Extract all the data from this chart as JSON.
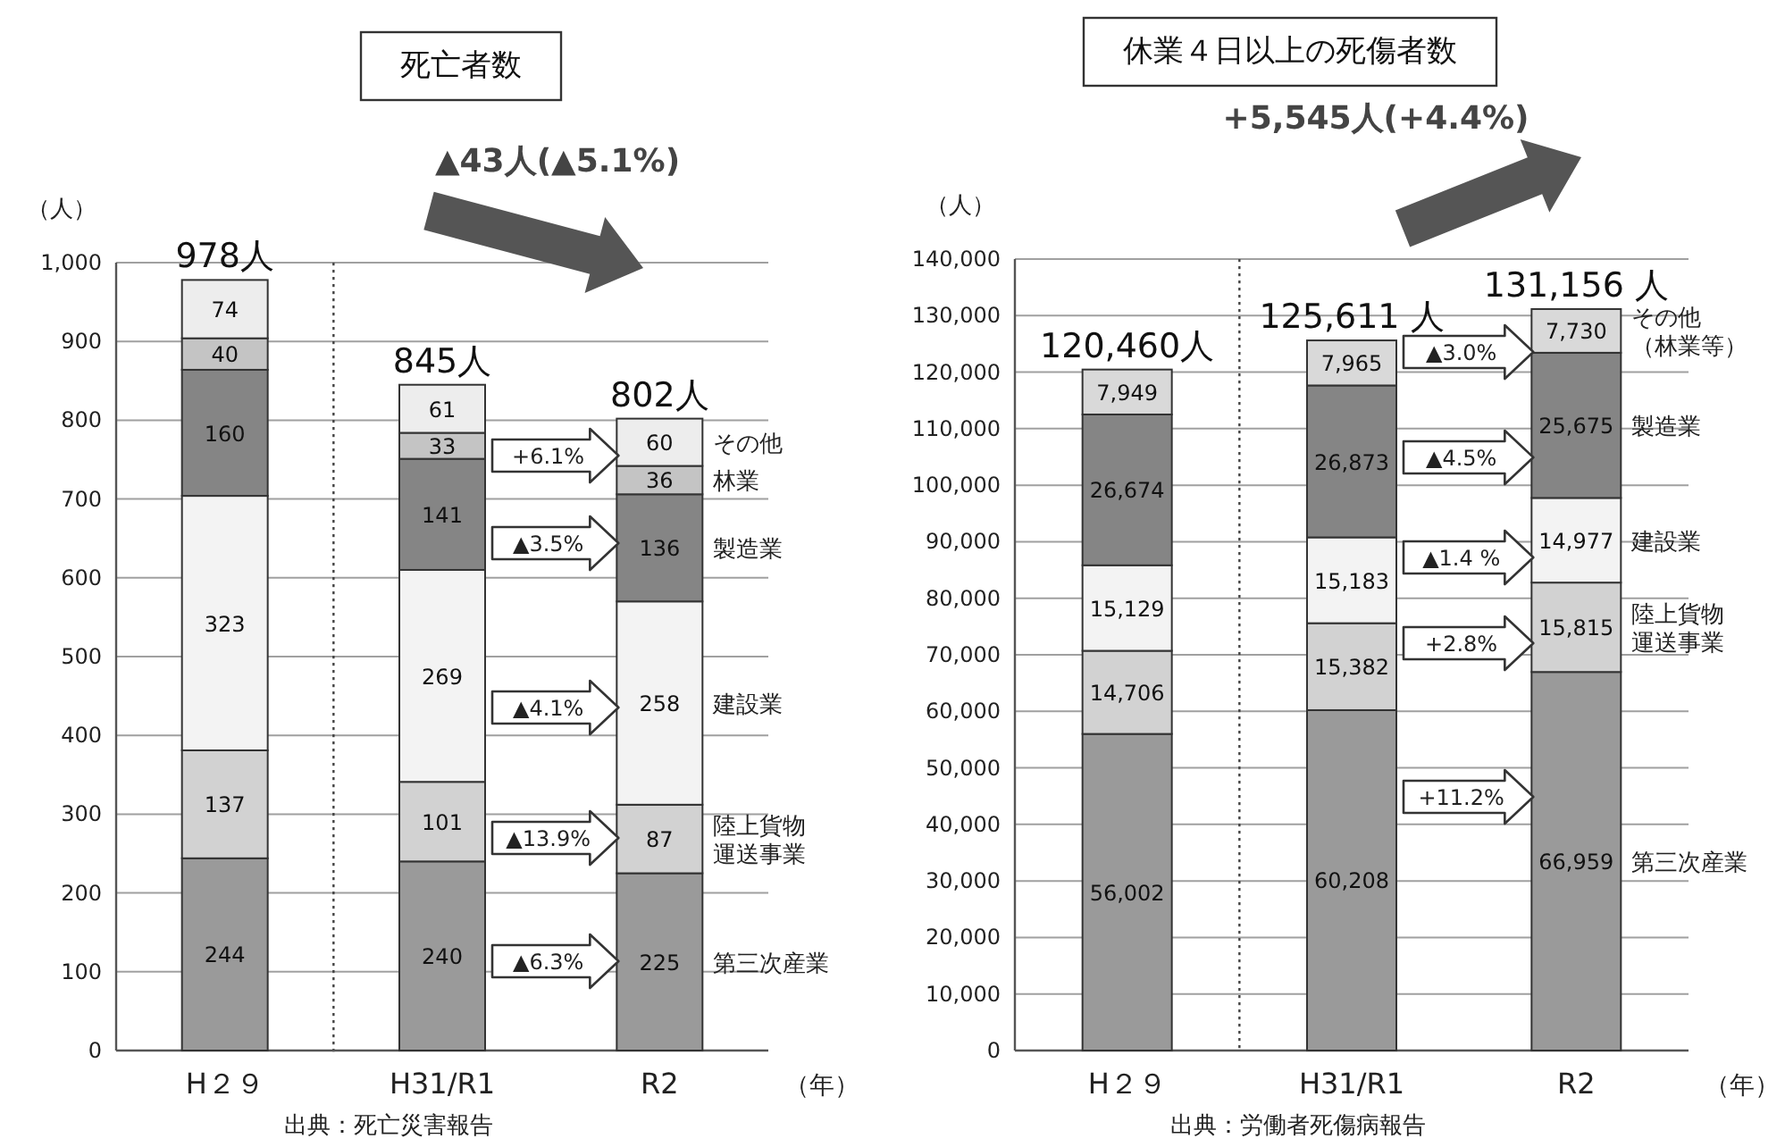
{
  "chart_data": [
    {
      "type": "bar",
      "stacked": true,
      "title": "死亡者数",
      "subtitle": "▲43人(▲5.1%)",
      "ylabel": "（人）",
      "xlabel": "（年）",
      "categories": [
        "H２９",
        "H31/R1",
        "R2"
      ],
      "series": [
        {
          "name": "第三次産業",
          "color": "#9a9a9a",
          "values": [
            244,
            240,
            225
          ]
        },
        {
          "name": "陸上貨物運送事業",
          "color": "#d2d2d2",
          "values": [
            137,
            101,
            87
          ]
        },
        {
          "name": "建設業",
          "color": "#f3f3f3",
          "values": [
            323,
            269,
            258
          ]
        },
        {
          "name": "製造業",
          "color": "#858585",
          "values": [
            160,
            141,
            136
          ]
        },
        {
          "name": "林業",
          "color": "#c4c4c4",
          "values": [
            40,
            33,
            36
          ]
        },
        {
          "name": "その他",
          "color": "#ededed",
          "values": [
            74,
            61,
            60
          ]
        }
      ],
      "ylim": [
        0,
        1000
      ],
      "yticks": [
        0,
        100,
        200,
        300,
        400,
        500,
        600,
        700,
        800,
        900,
        {
          "value": 1000,
          "label": "1,000"
        }
      ],
      "grid": "y",
      "data_labels": true,
      "totals": [
        "978人",
        "845人",
        "802人"
      ],
      "annotations": [
        "+6.1%",
        "▲3.5%",
        "▲4.1%",
        "▲13.9%",
        "▲6.3%",
        "出典：死亡災害報告"
      ]
    },
    {
      "type": "bar",
      "stacked": true,
      "title": "休業４日以上の死傷者数",
      "subtitle": "+5,545人(+4.4%)",
      "ylabel": "（人）",
      "xlabel": "（年）",
      "categories": [
        "H２９",
        "H31/R1",
        "R2"
      ],
      "series": [
        {
          "name": "第三次産業",
          "color": "#9a9a9a",
          "values": [
            56002,
            60208,
            66959
          ],
          "value_labels": [
            "56,002",
            "60,208",
            "66,959"
          ]
        },
        {
          "name": "陸上貨物運送事業",
          "color": "#d2d2d2",
          "values": [
            14706,
            15382,
            15815
          ],
          "value_labels": [
            "14,706",
            "15,382",
            "15,815"
          ]
        },
        {
          "name": "建設業",
          "color": "#f3f3f3",
          "values": [
            15129,
            15183,
            14977
          ],
          "value_labels": [
            "15,129",
            "15,183",
            "14,977"
          ]
        },
        {
          "name": "製造業",
          "color": "#858585",
          "values": [
            26674,
            26873,
            25675
          ],
          "value_labels": [
            "26,674",
            "26,873",
            "25,675"
          ]
        },
        {
          "name": "その他（林業等）",
          "color": "#d9d9d9",
          "values": [
            7949,
            7965,
            7730
          ],
          "value_labels": [
            "7,949",
            "7,965",
            "7,730"
          ]
        }
      ],
      "ylim": [
        0,
        140000
      ],
      "yticks": [
        0,
        {
          "value": 10000,
          "label": "10,000"
        },
        {
          "value": 20000,
          "label": "20,000"
        },
        {
          "value": 30000,
          "label": "30,000"
        },
        {
          "value": 40000,
          "label": "40,000"
        },
        {
          "value": 50000,
          "label": "50,000"
        },
        {
          "value": 60000,
          "label": "60,000"
        },
        {
          "value": 70000,
          "label": "70,000"
        },
        {
          "value": 80000,
          "label": "80,000"
        },
        {
          "value": 90000,
          "label": "90,000"
        },
        {
          "value": 100000,
          "label": "100,000"
        },
        {
          "value": 110000,
          "label": "110,000"
        },
        {
          "value": 120000,
          "label": "120,000"
        },
        {
          "value": 130000,
          "label": "130,000"
        },
        {
          "value": 140000,
          "label": "140,000"
        }
      ],
      "grid": "y",
      "totals": [
        "120,460人",
        "125,611 人",
        "131,156 人"
      ],
      "annotations": [
        "▲3.0%",
        "▲4.5%",
        "▲1.4 %",
        "+2.8%",
        "+11.2%",
        "出典：労働者死傷病報告"
      ]
    }
  ]
}
